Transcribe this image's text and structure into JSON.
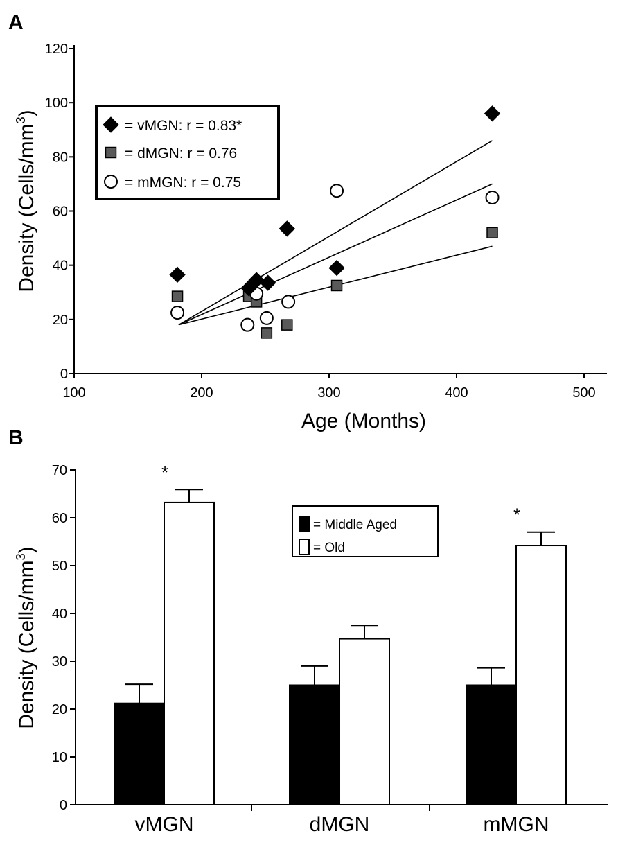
{
  "chart_data": [
    {
      "type": "scatter",
      "panel_label": "A",
      "xlabel": "Age (Months)",
      "ylabel_main": "Density (Cells/mm",
      "ylabel_sup": "3",
      "ylabel_close": ")",
      "xlim": [
        100,
        500
      ],
      "ylim": [
        0,
        120
      ],
      "xticks": [
        100,
        200,
        300,
        400,
        500
      ],
      "yticks": [
        0,
        20,
        40,
        60,
        80,
        100,
        120
      ],
      "legend_position": "top-left",
      "series": [
        {
          "name": "vMGN",
          "legend_label": "= vMGN: r = 0.83*",
          "marker": "diamond",
          "color": "#000000",
          "points": [
            [
              181,
              36.5
            ],
            [
              237,
              31.5
            ],
            [
              243,
              34.5
            ],
            [
              252,
              33.5
            ],
            [
              267,
              53.5
            ],
            [
              306,
              39
            ],
            [
              428,
              96
            ]
          ],
          "fit": [
            [
              182,
              18
            ],
            [
              428,
              86
            ]
          ]
        },
        {
          "name": "dMGN",
          "legend_label": "= dMGN: r = 0.76",
          "marker": "square",
          "color": "#5a5a5a",
          "points": [
            [
              181,
              28.5
            ],
            [
              237,
              28.5
            ],
            [
              243,
              26.5
            ],
            [
              251,
              15
            ],
            [
              267,
              18
            ],
            [
              306,
              32.5
            ],
            [
              428,
              52
            ]
          ],
          "fit": [
            [
              182,
              18
            ],
            [
              428,
              47
            ]
          ]
        },
        {
          "name": "mMGN",
          "legend_label": "= mMGN: r = 0.75",
          "marker": "circle",
          "color": "#ffffff",
          "points": [
            [
              181,
              22.5
            ],
            [
              236,
              18
            ],
            [
              243,
              29.5
            ],
            [
              251,
              20.5
            ],
            [
              268,
              26.5
            ],
            [
              306,
              67.5
            ],
            [
              428,
              65
            ]
          ],
          "fit": [
            [
              182,
              18
            ],
            [
              428,
              70
            ]
          ]
        }
      ]
    },
    {
      "type": "bar",
      "panel_label": "B",
      "ylabel_main": "Density (Cells/mm",
      "ylabel_sup": "3",
      "ylabel_close": ")",
      "ylim": [
        0,
        70
      ],
      "yticks": [
        0,
        10,
        20,
        30,
        40,
        50,
        60,
        70
      ],
      "categories": [
        "vMGN",
        "dMGN",
        "mMGN"
      ],
      "legend_position": "top-right",
      "series": [
        {
          "name": "Middle Aged",
          "legend_label": "= Middle Aged",
          "color": "#000000",
          "values": [
            21.2,
            25,
            25
          ],
          "errors": [
            4,
            4,
            3.6
          ]
        },
        {
          "name": "Old",
          "legend_label": "= Old",
          "color": "#ffffff",
          "values": [
            63.2,
            34.7,
            54.2
          ],
          "errors": [
            2.7,
            2.8,
            2.8
          ]
        }
      ],
      "annotations": [
        {
          "category": "vMGN",
          "series": "Old",
          "text": "*"
        },
        {
          "category": "mMGN",
          "series": "Old",
          "text": "*"
        }
      ]
    }
  ]
}
